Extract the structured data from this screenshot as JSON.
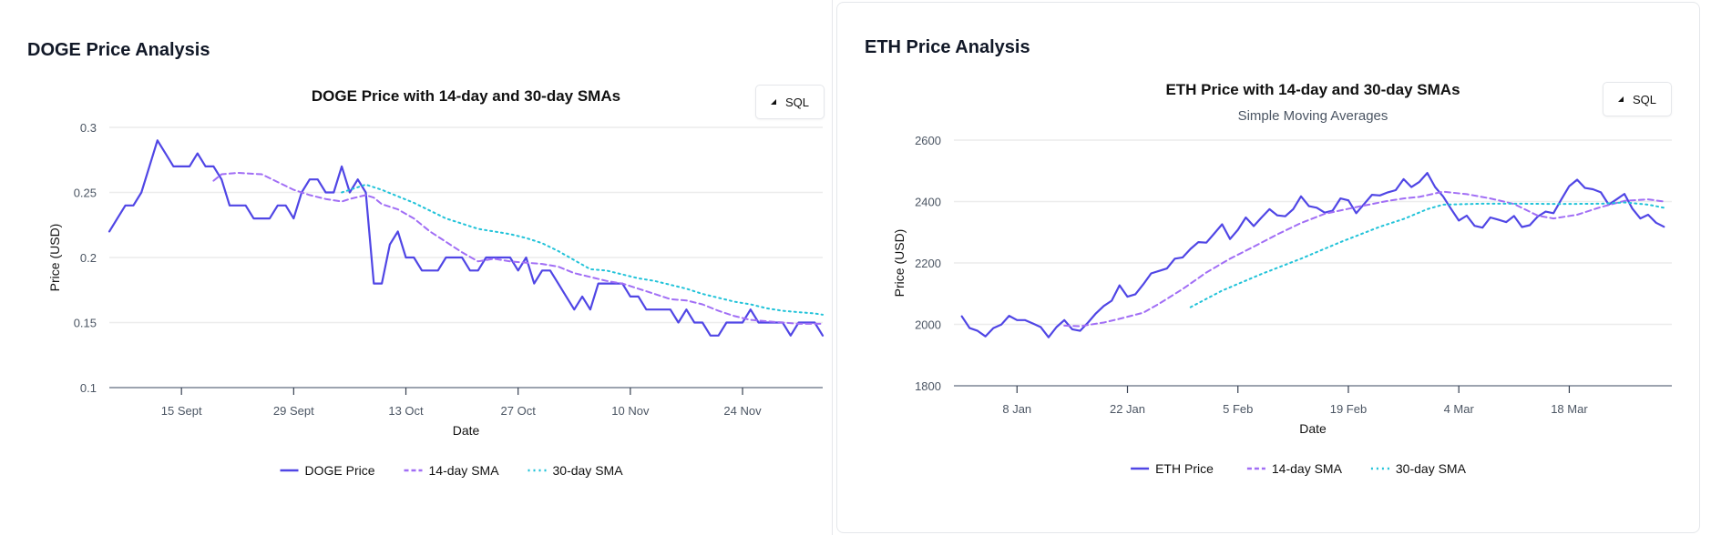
{
  "doge": {
    "card_title": "DOGE Price Analysis",
    "sql_label": "SQL",
    "sql_icon": "triangle-icon",
    "chart_data": {
      "type": "line",
      "title": "DOGE Price with 14-day and 30-day SMAs",
      "subtitle": "",
      "xlabel": "Date",
      "ylabel": "Price (USD)",
      "ylim": [
        0.1,
        0.3
      ],
      "yticks": [
        "0.1",
        "0.15",
        "0.2",
        "0.25",
        "0.3"
      ],
      "xticks": [
        "15 Sept",
        "29 Sept",
        "13 Oct",
        "27 Oct",
        "10 Nov",
        "24 Nov"
      ],
      "xtick_dates": [
        "Sep 15",
        "Sep 29",
        "Oct 13",
        "Oct 27",
        "Nov 10",
        "Nov 24"
      ],
      "xlim": [
        "Sep 6",
        "Dec 4"
      ],
      "grid": true,
      "legend_position": "bottom",
      "series": [
        {
          "name": "DOGE Price",
          "color": "#5046e5",
          "style": "solid",
          "x": [
            "Sep 6",
            "Sep 7",
            "Sep 8",
            "Sep 9",
            "Sep 10",
            "Sep 11",
            "Sep 12",
            "Sep 13",
            "Sep 14",
            "Sep 15",
            "Sep 16",
            "Sep 17",
            "Sep 18",
            "Sep 19",
            "Sep 20",
            "Sep 21",
            "Sep 22",
            "Sep 23",
            "Sep 24",
            "Sep 25",
            "Sep 26",
            "Sep 27",
            "Sep 28",
            "Sep 29",
            "Sep 30",
            "Oct 1",
            "Oct 2",
            "Oct 3",
            "Oct 4",
            "Oct 5",
            "Oct 6",
            "Oct 7",
            "Oct 8",
            "Oct 9",
            "Oct 10",
            "Oct 11",
            "Oct 12",
            "Oct 13",
            "Oct 14",
            "Oct 15",
            "Oct 16",
            "Oct 17",
            "Oct 18",
            "Oct 19",
            "Oct 20",
            "Oct 21",
            "Oct 22",
            "Oct 23",
            "Oct 24",
            "Oct 25",
            "Oct 26",
            "Oct 27",
            "Oct 28",
            "Oct 29",
            "Oct 30",
            "Oct 31",
            "Nov 1",
            "Nov 2",
            "Nov 3",
            "Nov 4",
            "Nov 5",
            "Nov 6",
            "Nov 7",
            "Nov 8",
            "Nov 9",
            "Nov 10",
            "Nov 11",
            "Nov 12",
            "Nov 13",
            "Nov 14",
            "Nov 15",
            "Nov 16",
            "Nov 17",
            "Nov 18",
            "Nov 19",
            "Nov 20",
            "Nov 21",
            "Nov 22",
            "Nov 23",
            "Nov 24",
            "Nov 25",
            "Nov 26",
            "Nov 27",
            "Nov 28",
            "Nov 29",
            "Nov 30",
            "Dec 1",
            "Dec 2",
            "Dec 3",
            "Dec 4"
          ],
          "y": [
            0.22,
            0.23,
            0.24,
            0.24,
            0.25,
            0.27,
            0.29,
            0.28,
            0.27,
            0.27,
            0.27,
            0.28,
            0.27,
            0.27,
            0.26,
            0.24,
            0.24,
            0.24,
            0.23,
            0.23,
            0.23,
            0.24,
            0.24,
            0.23,
            0.25,
            0.26,
            0.26,
            0.25,
            0.25,
            0.27,
            0.25,
            0.26,
            0.25,
            0.18,
            0.18,
            0.21,
            0.22,
            0.2,
            0.2,
            0.19,
            0.19,
            0.19,
            0.2,
            0.2,
            0.2,
            0.19,
            0.19,
            0.2,
            0.2,
            0.2,
            0.2,
            0.19,
            0.2,
            0.18,
            0.19,
            0.19,
            0.18,
            0.17,
            0.16,
            0.17,
            0.16,
            0.18,
            0.18,
            0.18,
            0.18,
            0.17,
            0.17,
            0.16,
            0.16,
            0.16,
            0.16,
            0.15,
            0.16,
            0.15,
            0.15,
            0.14,
            0.14,
            0.15,
            0.15,
            0.15,
            0.16,
            0.15,
            0.15,
            0.15,
            0.15,
            0.14,
            0.15,
            0.15,
            0.15,
            0.14
          ]
        },
        {
          "name": "14-day SMA",
          "color": "#a16ef5",
          "style": "dashed",
          "x": [
            "Sep 19",
            "Sep 20",
            "Sep 22",
            "Sep 25",
            "Sep 27",
            "Sep 29",
            "Oct 1",
            "Oct 3",
            "Oct 5",
            "Oct 6",
            "Oct 8",
            "Oct 9",
            "Oct 10",
            "Oct 12",
            "Oct 14",
            "Oct 16",
            "Oct 18",
            "Oct 20",
            "Oct 22",
            "Oct 24",
            "Oct 26",
            "Oct 28",
            "Oct 30",
            "Nov 1",
            "Nov 3",
            "Nov 5",
            "Nov 7",
            "Nov 9",
            "Nov 11",
            "Nov 13",
            "Nov 15",
            "Nov 17",
            "Nov 19",
            "Nov 21",
            "Nov 23",
            "Nov 25",
            "Nov 27",
            "Nov 29",
            "Dec 1",
            "Dec 3",
            "Dec 4"
          ],
          "y": [
            0.259,
            0.264,
            0.265,
            0.264,
            0.258,
            0.252,
            0.248,
            0.245,
            0.243,
            0.245,
            0.248,
            0.246,
            0.241,
            0.237,
            0.23,
            0.22,
            0.212,
            0.204,
            0.197,
            0.199,
            0.197,
            0.196,
            0.195,
            0.193,
            0.188,
            0.185,
            0.182,
            0.18,
            0.176,
            0.172,
            0.168,
            0.167,
            0.164,
            0.159,
            0.155,
            0.152,
            0.151,
            0.15,
            0.149,
            0.149,
            0.149
          ]
        },
        {
          "name": "30-day SMA",
          "color": "#22c3d9",
          "style": "dotted",
          "x": [
            "Oct 5",
            "Oct 7",
            "Oct 8",
            "Oct 10",
            "Oct 12",
            "Oct 14",
            "Oct 16",
            "Oct 18",
            "Oct 20",
            "Oct 22",
            "Oct 24",
            "Oct 26",
            "Oct 28",
            "Oct 30",
            "Nov 1",
            "Nov 3",
            "Nov 5",
            "Nov 7",
            "Nov 9",
            "Nov 11",
            "Nov 13",
            "Nov 15",
            "Nov 17",
            "Nov 19",
            "Nov 21",
            "Nov 23",
            "Nov 25",
            "Nov 27",
            "Nov 29",
            "Dec 1",
            "Dec 3",
            "Dec 4"
          ],
          "y": [
            0.25,
            0.254,
            0.256,
            0.252,
            0.247,
            0.242,
            0.236,
            0.23,
            0.226,
            0.222,
            0.22,
            0.218,
            0.215,
            0.211,
            0.205,
            0.198,
            0.191,
            0.19,
            0.187,
            0.184,
            0.182,
            0.179,
            0.176,
            0.172,
            0.169,
            0.166,
            0.164,
            0.161,
            0.159,
            0.158,
            0.157,
            0.156
          ]
        }
      ]
    }
  },
  "eth": {
    "card_title": "ETH Price Analysis",
    "sql_label": "SQL",
    "sql_icon": "triangle-icon",
    "chart_data": {
      "type": "line",
      "title": "ETH Price with 14-day and 30-day SMAs",
      "subtitle": "Simple Moving Averages",
      "xlabel": "Date",
      "ylabel": "Price (USD)",
      "ylim": [
        1800,
        2600
      ],
      "yticks": [
        "1800",
        "2000",
        "2200",
        "2400",
        "2600"
      ],
      "xticks": [
        "8 Jan",
        "22 Jan",
        "5 Feb",
        "19 Feb",
        "4 Mar",
        "18 Mar"
      ],
      "xtick_dates": [
        "Jan 8",
        "Jan 22",
        "Feb 5",
        "Feb 19",
        "Mar 4",
        "Mar 18"
      ],
      "xlim": [
        "Dec 31",
        "Mar 31"
      ],
      "grid": true,
      "legend_position": "bottom",
      "series": [
        {
          "name": "ETH Price",
          "color": "#5046e5",
          "style": "solid",
          "x": [
            "Jan 1",
            "Jan 2",
            "Jan 3",
            "Jan 4",
            "Jan 5",
            "Jan 6",
            "Jan 7",
            "Jan 8",
            "Jan 9",
            "Jan 10",
            "Jan 11",
            "Jan 12",
            "Jan 13",
            "Jan 14",
            "Jan 15",
            "Jan 16",
            "Jan 17",
            "Jan 18",
            "Jan 19",
            "Jan 20",
            "Jan 21",
            "Jan 22",
            "Jan 23",
            "Jan 24",
            "Jan 25",
            "Jan 26",
            "Jan 27",
            "Jan 28",
            "Jan 29",
            "Jan 30",
            "Jan 31",
            "Feb 1",
            "Feb 2",
            "Feb 3",
            "Feb 4",
            "Feb 5",
            "Feb 6",
            "Feb 7",
            "Feb 8",
            "Feb 9",
            "Feb 10",
            "Feb 11",
            "Feb 12",
            "Feb 13",
            "Feb 14",
            "Feb 15",
            "Feb 16",
            "Feb 17",
            "Feb 18",
            "Feb 19",
            "Feb 20",
            "Feb 21",
            "Feb 22",
            "Feb 23",
            "Feb 24",
            "Feb 25",
            "Feb 26",
            "Feb 27",
            "Feb 28",
            "Feb 29",
            "Mar 1",
            "Mar 2",
            "Mar 3",
            "Mar 4",
            "Mar 5",
            "Mar 6",
            "Mar 7",
            "Mar 8",
            "Mar 9",
            "Mar 10",
            "Mar 11",
            "Mar 12",
            "Mar 13",
            "Mar 14",
            "Mar 15",
            "Mar 16",
            "Mar 17",
            "Mar 18",
            "Mar 19",
            "Mar 20",
            "Mar 21",
            "Mar 22",
            "Mar 23",
            "Mar 24",
            "Mar 25",
            "Mar 26",
            "Mar 27",
            "Mar 28",
            "Mar 29",
            "Mar 30"
          ],
          "y": [
            2026,
            1988,
            1979,
            1961,
            1988,
            1999,
            2028,
            2014,
            2014,
            2003,
            1991,
            1958,
            1991,
            2014,
            1984,
            1979,
            2006,
            2036,
            2060,
            2077,
            2127,
            2090,
            2098,
            2130,
            2166,
            2174,
            2182,
            2214,
            2218,
            2246,
            2268,
            2266,
            2296,
            2326,
            2278,
            2308,
            2348,
            2320,
            2348,
            2375,
            2355,
            2352,
            2375,
            2417,
            2385,
            2380,
            2364,
            2370,
            2410,
            2404,
            2362,
            2392,
            2422,
            2420,
            2430,
            2437,
            2473,
            2447,
            2464,
            2493,
            2447,
            2417,
            2377,
            2338,
            2354,
            2321,
            2315,
            2348,
            2341,
            2333,
            2353,
            2317,
            2323,
            2351,
            2367,
            2362,
            2407,
            2450,
            2471,
            2444,
            2440,
            2430,
            2390,
            2407,
            2425,
            2377,
            2345,
            2357,
            2331,
            2318
          ]
        },
        {
          "name": "14-day SMA",
          "color": "#a16ef5",
          "style": "dashed",
          "x": [
            "Jan 14",
            "Jan 16",
            "Jan 19",
            "Jan 21",
            "Jan 24",
            "Jan 26",
            "Jan 29",
            "Feb 1",
            "Feb 4",
            "Feb 7",
            "Feb 10",
            "Feb 13",
            "Feb 16",
            "Feb 20",
            "Feb 24",
            "Feb 26",
            "Feb 28",
            "Mar 2",
            "Mar 5",
            "Mar 8",
            "Mar 11",
            "Mar 14",
            "Mar 16",
            "Mar 19",
            "Mar 22",
            "Mar 25",
            "Mar 28",
            "Mar 30"
          ],
          "y": [
            1996,
            1994,
            2006,
            2018,
            2038,
            2067,
            2115,
            2169,
            2214,
            2253,
            2293,
            2330,
            2360,
            2382,
            2402,
            2410,
            2415,
            2432,
            2424,
            2410,
            2392,
            2354,
            2345,
            2357,
            2382,
            2402,
            2407,
            2400
          ]
        },
        {
          "name": "30-day SMA",
          "color": "#22c3d9",
          "style": "dotted",
          "x": [
            "Jan 30",
            "Feb 3",
            "Feb 8",
            "Feb 13",
            "Feb 18",
            "Feb 23",
            "Feb 26",
            "Feb 29",
            "Mar 2",
            "Mar 7",
            "Mar 12",
            "Mar 17",
            "Mar 22",
            "Mar 25",
            "Mar 28",
            "Mar 30"
          ],
          "y": [
            2056,
            2110,
            2164,
            2214,
            2268,
            2318,
            2343,
            2375,
            2390,
            2393,
            2393,
            2392,
            2393,
            2397,
            2390,
            2380
          ]
        }
      ]
    }
  }
}
